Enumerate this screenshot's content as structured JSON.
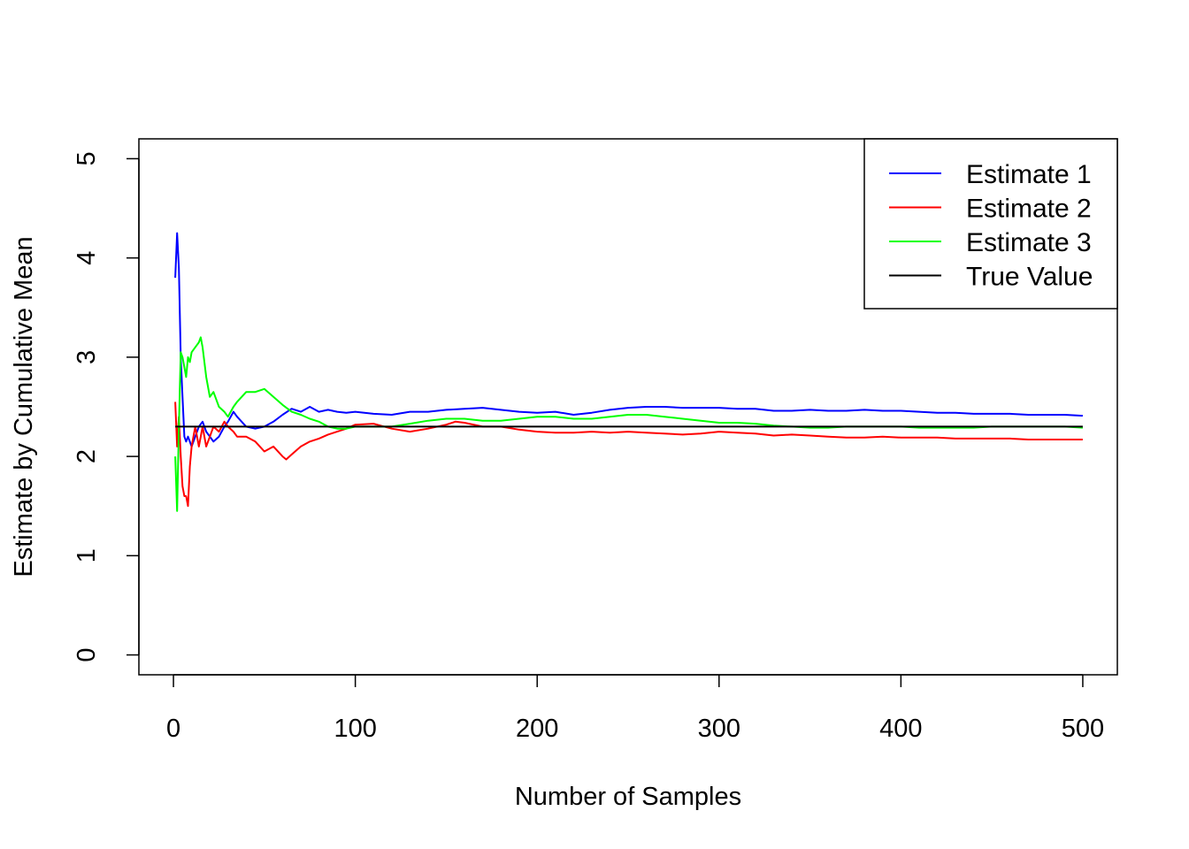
{
  "chart_data": {
    "type": "line",
    "title": "",
    "xlabel": "Number of Samples",
    "ylabel": "Estimate by Cumulative Mean",
    "xlim": [
      -19,
      519
    ],
    "ylim": [
      -0.2,
      5.2
    ],
    "xticks": [
      0,
      100,
      200,
      300,
      400,
      500
    ],
    "xtick_labels": [
      "0",
      "100",
      "200",
      "300",
      "400",
      "500"
    ],
    "yticks": [
      0,
      1,
      2,
      3,
      4,
      5
    ],
    "ytick_labels": [
      "0",
      "1",
      "2",
      "3",
      "4",
      "5"
    ],
    "grid": false,
    "legend_position": "top-right",
    "series": [
      {
        "name": "Estimate 1",
        "color": "#0000ff",
        "x": [
          1,
          2,
          3,
          4,
          5,
          6,
          7,
          8,
          9,
          10,
          12,
          14,
          16,
          18,
          20,
          22,
          25,
          28,
          30,
          33,
          35,
          40,
          45,
          50,
          55,
          60,
          65,
          70,
          75,
          80,
          85,
          90,
          95,
          100,
          110,
          120,
          130,
          140,
          150,
          160,
          170,
          180,
          190,
          200,
          210,
          220,
          230,
          240,
          250,
          260,
          270,
          280,
          290,
          300,
          310,
          320,
          330,
          340,
          350,
          360,
          370,
          380,
          390,
          400,
          410,
          420,
          430,
          440,
          450,
          460,
          470,
          480,
          490,
          500
        ],
        "values": [
          3.8,
          4.25,
          3.9,
          3.0,
          2.6,
          2.2,
          2.15,
          2.2,
          2.15,
          2.1,
          2.2,
          2.3,
          2.35,
          2.25,
          2.2,
          2.15,
          2.2,
          2.3,
          2.35,
          2.45,
          2.4,
          2.3,
          2.28,
          2.3,
          2.35,
          2.42,
          2.48,
          2.45,
          2.5,
          2.45,
          2.47,
          2.45,
          2.44,
          2.45,
          2.43,
          2.42,
          2.45,
          2.45,
          2.47,
          2.48,
          2.49,
          2.47,
          2.45,
          2.44,
          2.45,
          2.42,
          2.44,
          2.47,
          2.49,
          2.5,
          2.5,
          2.49,
          2.49,
          2.49,
          2.48,
          2.48,
          2.46,
          2.46,
          2.47,
          2.46,
          2.46,
          2.47,
          2.46,
          2.46,
          2.45,
          2.44,
          2.44,
          2.43,
          2.43,
          2.43,
          2.42,
          2.42,
          2.42,
          2.41
        ]
      },
      {
        "name": "Estimate 2",
        "color": "#ff0000",
        "x": [
          1,
          2,
          3,
          4,
          5,
          6,
          7,
          8,
          9,
          10,
          12,
          14,
          16,
          18,
          20,
          22,
          25,
          28,
          30,
          33,
          35,
          40,
          45,
          50,
          55,
          60,
          62,
          65,
          70,
          75,
          80,
          85,
          90,
          95,
          100,
          110,
          120,
          130,
          140,
          150,
          155,
          160,
          170,
          180,
          190,
          200,
          210,
          220,
          230,
          240,
          250,
          260,
          270,
          280,
          290,
          300,
          310,
          320,
          330,
          340,
          350,
          360,
          370,
          380,
          390,
          400,
          410,
          420,
          430,
          440,
          450,
          460,
          470,
          480,
          490,
          500
        ],
        "values": [
          2.55,
          2.1,
          2.4,
          2.0,
          1.7,
          1.6,
          1.6,
          1.5,
          1.9,
          2.1,
          2.3,
          2.1,
          2.3,
          2.1,
          2.2,
          2.3,
          2.25,
          2.35,
          2.3,
          2.25,
          2.2,
          2.2,
          2.15,
          2.05,
          2.1,
          2.0,
          1.97,
          2.02,
          2.1,
          2.15,
          2.18,
          2.22,
          2.25,
          2.28,
          2.32,
          2.33,
          2.28,
          2.25,
          2.28,
          2.32,
          2.35,
          2.34,
          2.3,
          2.3,
          2.27,
          2.25,
          2.24,
          2.24,
          2.25,
          2.24,
          2.25,
          2.24,
          2.23,
          2.22,
          2.23,
          2.25,
          2.24,
          2.23,
          2.21,
          2.22,
          2.21,
          2.2,
          2.19,
          2.19,
          2.2,
          2.19,
          2.19,
          2.19,
          2.18,
          2.18,
          2.18,
          2.18,
          2.17,
          2.17,
          2.17,
          2.17
        ]
      },
      {
        "name": "Estimate 3",
        "color": "#00ff00",
        "x": [
          1,
          2,
          3,
          4,
          5,
          6,
          7,
          8,
          9,
          10,
          12,
          14,
          15,
          16,
          18,
          20,
          22,
          25,
          28,
          30,
          33,
          35,
          40,
          45,
          50,
          55,
          60,
          65,
          70,
          75,
          80,
          85,
          90,
          95,
          100,
          110,
          120,
          130,
          140,
          150,
          160,
          170,
          180,
          190,
          200,
          210,
          220,
          230,
          240,
          250,
          260,
          270,
          280,
          290,
          300,
          310,
          320,
          330,
          340,
          350,
          360,
          370,
          380,
          390,
          400,
          410,
          420,
          430,
          440,
          450,
          460,
          470,
          480,
          490,
          500
        ],
        "values": [
          2.0,
          1.45,
          2.3,
          3.05,
          3.0,
          2.9,
          2.8,
          3.0,
          2.95,
          3.05,
          3.1,
          3.15,
          3.2,
          3.1,
          2.8,
          2.6,
          2.65,
          2.5,
          2.45,
          2.4,
          2.5,
          2.55,
          2.65,
          2.65,
          2.68,
          2.6,
          2.52,
          2.45,
          2.42,
          2.38,
          2.35,
          2.3,
          2.28,
          2.28,
          2.3,
          2.3,
          2.3,
          2.33,
          2.36,
          2.38,
          2.38,
          2.36,
          2.36,
          2.38,
          2.4,
          2.4,
          2.38,
          2.38,
          2.4,
          2.42,
          2.42,
          2.4,
          2.38,
          2.36,
          2.34,
          2.34,
          2.33,
          2.31,
          2.3,
          2.29,
          2.29,
          2.3,
          2.3,
          2.3,
          2.3,
          2.29,
          2.29,
          2.29,
          2.29,
          2.3,
          2.3,
          2.3,
          2.3,
          2.3,
          2.29
        ]
      },
      {
        "name": "True Value",
        "color": "#000000",
        "x": [
          1,
          500
        ],
        "values": [
          2.3,
          2.3
        ]
      }
    ]
  }
}
